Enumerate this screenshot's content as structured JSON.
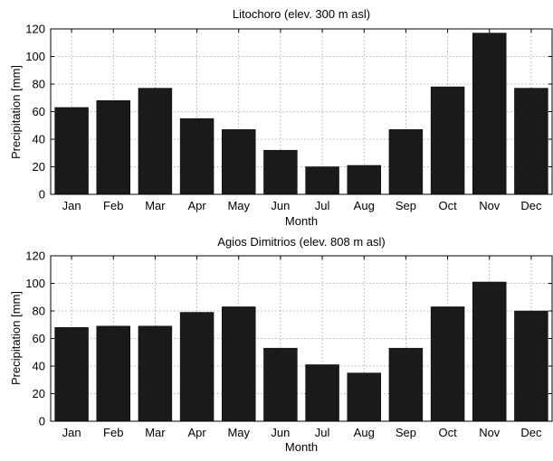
{
  "chart_data": [
    {
      "type": "bar",
      "title": "Litochoro (elev. 300 m asl)",
      "xlabel": "Month",
      "ylabel": "Precipitation [mm]",
      "categories": [
        "Jan",
        "Feb",
        "Mar",
        "Apr",
        "May",
        "Jun",
        "Jul",
        "Aug",
        "Sep",
        "Oct",
        "Nov",
        "Dec"
      ],
      "values": [
        63,
        68,
        77,
        55,
        47,
        32,
        20,
        21,
        47,
        78,
        117,
        77
      ],
      "ylim": [
        0,
        120
      ],
      "yticks": [
        0,
        20,
        40,
        60,
        80,
        100,
        120
      ],
      "grid": true,
      "bar_color": "#1a1a1a"
    },
    {
      "type": "bar",
      "title": "Agios Dimitrios (elev. 808 m asl)",
      "xlabel": "Month",
      "ylabel": "Precipitation [mm]",
      "categories": [
        "Jan",
        "Feb",
        "Mar",
        "Apr",
        "May",
        "Jun",
        "Jul",
        "Aug",
        "Sep",
        "Oct",
        "Nov",
        "Dec"
      ],
      "values": [
        68,
        69,
        69,
        79,
        83,
        53,
        41,
        35,
        53,
        83,
        101,
        80
      ],
      "ylim": [
        0,
        120
      ],
      "yticks": [
        0,
        20,
        40,
        60,
        80,
        100,
        120
      ],
      "grid": true,
      "bar_color": "#1a1a1a"
    }
  ]
}
